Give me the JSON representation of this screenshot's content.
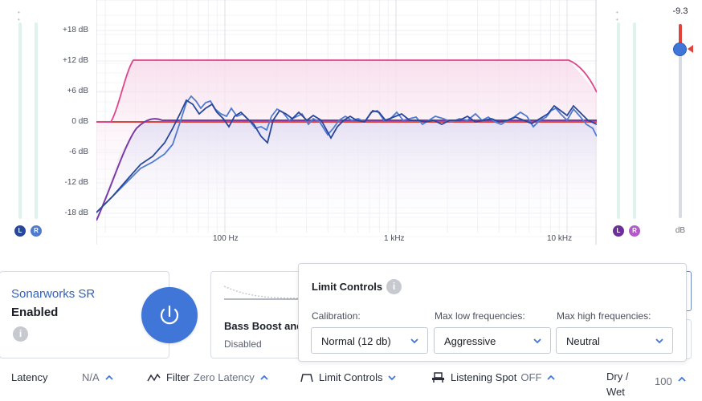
{
  "graph": {
    "y_labels": [
      "+18 dB",
      "+12 dB",
      "+6 dB",
      "0 dB",
      "-6 dB",
      "-12 dB",
      "-18 dB"
    ],
    "x_labels": [
      "100 Hz",
      "1 kHz",
      "10 kHz"
    ],
    "left_meter": {
      "badge_left": "L",
      "badge_right": "R"
    },
    "right_meter": {
      "badge_left": "L",
      "badge_right": "R"
    }
  },
  "output_gain": {
    "value": "-9.3",
    "unit": "dB",
    "level_fraction": 0.88
  },
  "colors": {
    "accent": "#3f76d8",
    "target_curve": "#e0468b",
    "zero_line": "#e0433b",
    "left_channel": "#27479b",
    "right_channel": "#4f7bd0",
    "pink_fill": "#f5dbe8",
    "purple_fill": "#e9e4f5"
  },
  "plugin_card": {
    "title": "Sonarworks SR",
    "status": "Enabled",
    "info_icon": "info-icon",
    "power_icon": "power-icon"
  },
  "bass_card": {
    "title": "Bass Boost and",
    "status": "Disabled"
  },
  "limit_popup": {
    "title": "Limit Controls",
    "calibration_label": "Calibration:",
    "calibration_value": "Normal (12 db)",
    "low_label": "Max low frequencies:",
    "low_value": "Aggressive",
    "high_label": "Max high frequencies:",
    "high_value": "Neutral"
  },
  "bottom_bar": {
    "latency_label": "Latency",
    "latency_value": "N/A",
    "filter_label": "Filter",
    "filter_value": "Zero Latency",
    "limit_label": "Limit Controls",
    "listening_label": "Listening Spot",
    "listening_value": "OFF",
    "drywet_label_1": "Dry /",
    "drywet_label_2": "Wet",
    "drywet_value": "100"
  }
}
